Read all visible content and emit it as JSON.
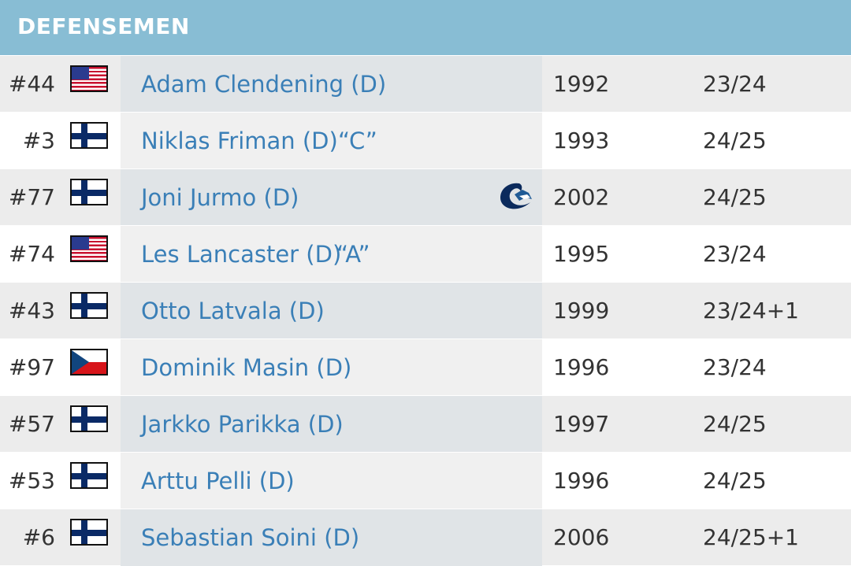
{
  "header": {
    "title": "DEFENSEMEN"
  },
  "players": [
    {
      "number": "#44",
      "flag": "usa",
      "name": "Adam Clendening (D)",
      "captain": "",
      "team_logo": "",
      "year": "1992",
      "contract": "23/24"
    },
    {
      "number": "#3",
      "flag": "fin",
      "name": "Niklas Friman (D)",
      "captain": "“C”",
      "team_logo": "",
      "year": "1993",
      "contract": "24/25"
    },
    {
      "number": "#77",
      "flag": "fin",
      "name": "Joni Jurmo (D)",
      "captain": "",
      "team_logo": "vancouver-canucks-logo",
      "year": "2002",
      "contract": "24/25"
    },
    {
      "number": "#74",
      "flag": "usa",
      "name": "Les Lancaster (D)",
      "captain": "“A”",
      "team_logo": "",
      "year": "1995",
      "contract": "23/24"
    },
    {
      "number": "#43",
      "flag": "fin",
      "name": "Otto Latvala (D)",
      "captain": "",
      "team_logo": "",
      "year": "1999",
      "contract": "23/24+1"
    },
    {
      "number": "#97",
      "flag": "cze",
      "name": "Dominik Masin (D)",
      "captain": "",
      "team_logo": "",
      "year": "1996",
      "contract": "23/24"
    },
    {
      "number": "#57",
      "flag": "fin",
      "name": "Jarkko Parikka (D)",
      "captain": "",
      "team_logo": "",
      "year": "1997",
      "contract": "24/25"
    },
    {
      "number": "#53",
      "flag": "fin",
      "name": "Arttu Pelli (D)",
      "captain": "",
      "team_logo": "",
      "year": "1996",
      "contract": "24/25"
    },
    {
      "number": "#6",
      "flag": "fin",
      "name": "Sebastian Soini (D)",
      "captain": "",
      "team_logo": "",
      "year": "2006",
      "contract": "24/25+1"
    }
  ],
  "colors": {
    "header_bg": "#88bdd4",
    "link": "#3a7fb7",
    "text": "#333333"
  }
}
